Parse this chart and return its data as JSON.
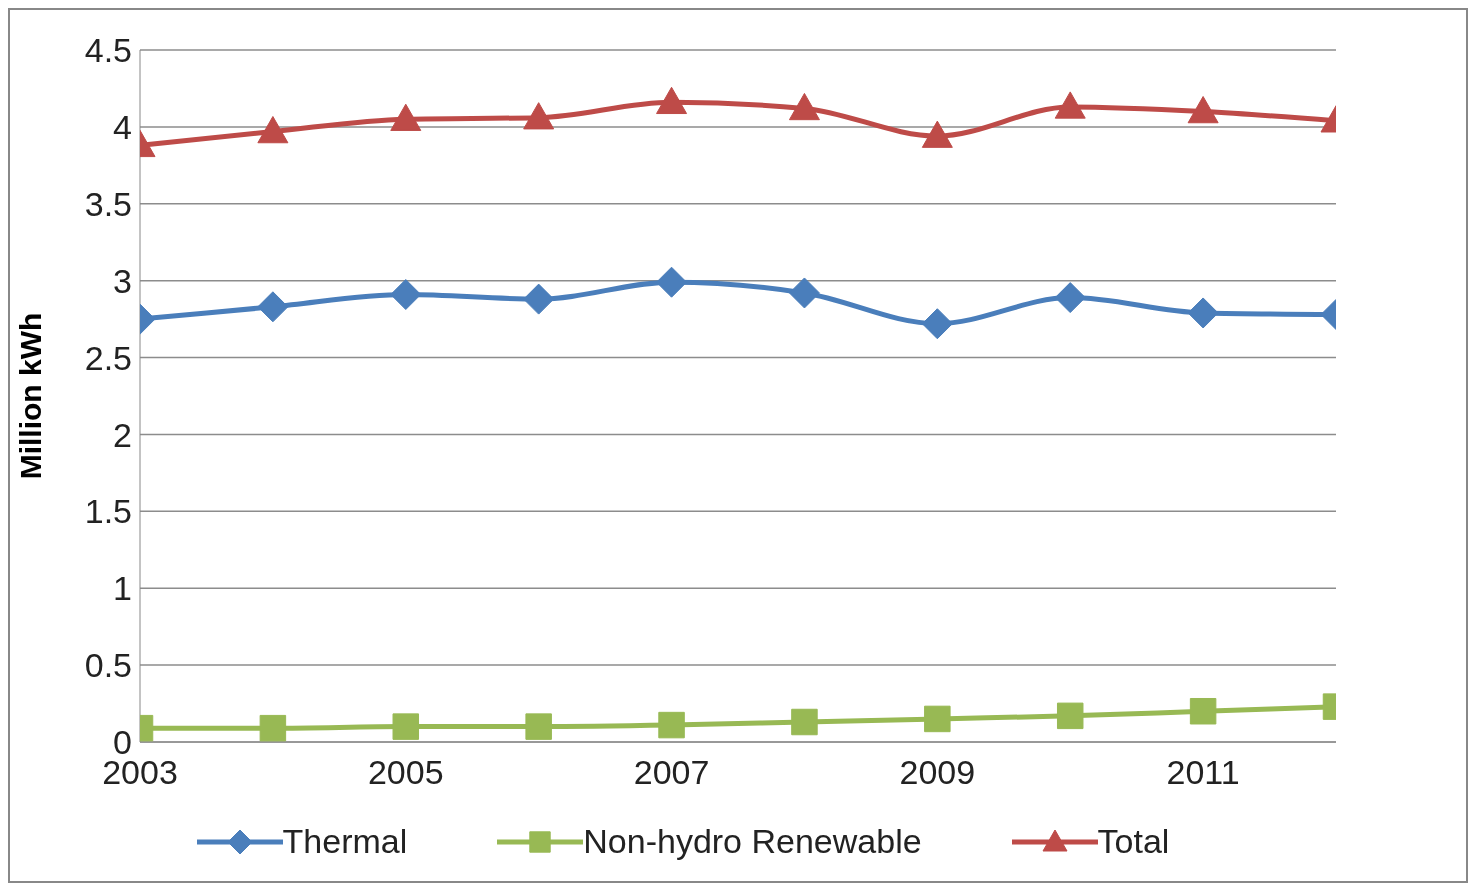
{
  "chart_data": {
    "type": "line",
    "ylabel": "Million kWh",
    "x": [
      2003,
      2004,
      2005,
      2006,
      2007,
      2008,
      2009,
      2010,
      2011,
      2012
    ],
    "series": [
      {
        "name": "Thermal",
        "color": "#4a7ebb",
        "marker": "diamond",
        "values": [
          2.75,
          2.83,
          2.91,
          2.88,
          2.99,
          2.92,
          2.72,
          2.89,
          2.79,
          2.78
        ]
      },
      {
        "name": "Non-hydro Renewable",
        "color": "#98b954",
        "marker": "square",
        "values": [
          0.09,
          0.09,
          0.1,
          0.1,
          0.11,
          0.13,
          0.15,
          0.17,
          0.2,
          0.23
        ]
      },
      {
        "name": "Total",
        "color": "#be4b48",
        "marker": "triangle",
        "values": [
          3.88,
          3.97,
          4.05,
          4.06,
          4.16,
          4.12,
          3.94,
          4.13,
          4.1,
          4.04
        ]
      }
    ],
    "xlim": [
      2003,
      2012
    ],
    "xticks": [
      2003,
      2005,
      2007,
      2009,
      2011
    ],
    "ylim": [
      0,
      4.5
    ],
    "yticks": [
      0,
      0.5,
      1,
      1.5,
      2,
      2.5,
      3,
      3.5,
      4,
      4.5
    ],
    "grid": "y",
    "legend": "bottom",
    "line_style": "solid"
  }
}
